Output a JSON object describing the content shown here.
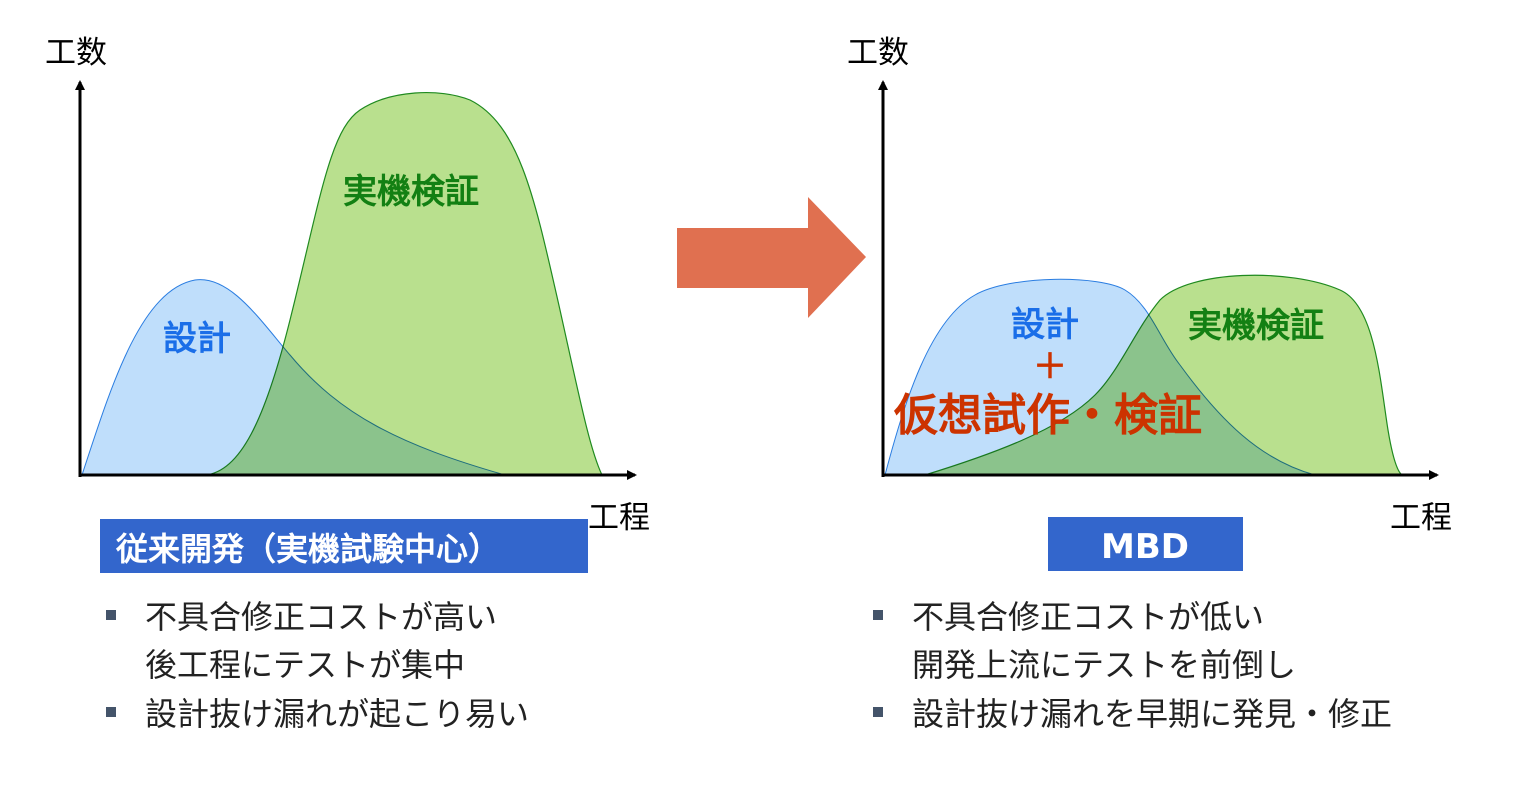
{
  "left": {
    "y_axis_label": "工数",
    "x_axis_label": "工程",
    "design_label": "設計",
    "verification_label": "実機検証",
    "title": "従来開発（実機試験中心）",
    "bullets": [
      "不具合修正コストが高い",
      "後工程にテストが集中",
      "設計抜け漏れが起こり易い"
    ]
  },
  "right": {
    "y_axis_label": "工数",
    "x_axis_label": "工程",
    "design_label": "設計",
    "plus_label": "＋",
    "virtual_label": "仮想試作・検証",
    "verification_label": "実機検証",
    "title": "MBD",
    "bullets": [
      "不具合修正コストが低い",
      "開発上流にテストを前倒し",
      "設計抜け漏れを早期に発見・修正"
    ]
  },
  "colors": {
    "design_fill": "#bcdcfb",
    "design_stroke": "#2a7de1",
    "verification_fill": "#b9e08e",
    "verification_stroke": "#1f8a1f",
    "design_text": "#1a6ee8",
    "verification_text": "#138013",
    "virtual_text": "#cc3300",
    "arrow": "#e07050",
    "title_box": "#3366cc",
    "bullet": "#44546a"
  }
}
